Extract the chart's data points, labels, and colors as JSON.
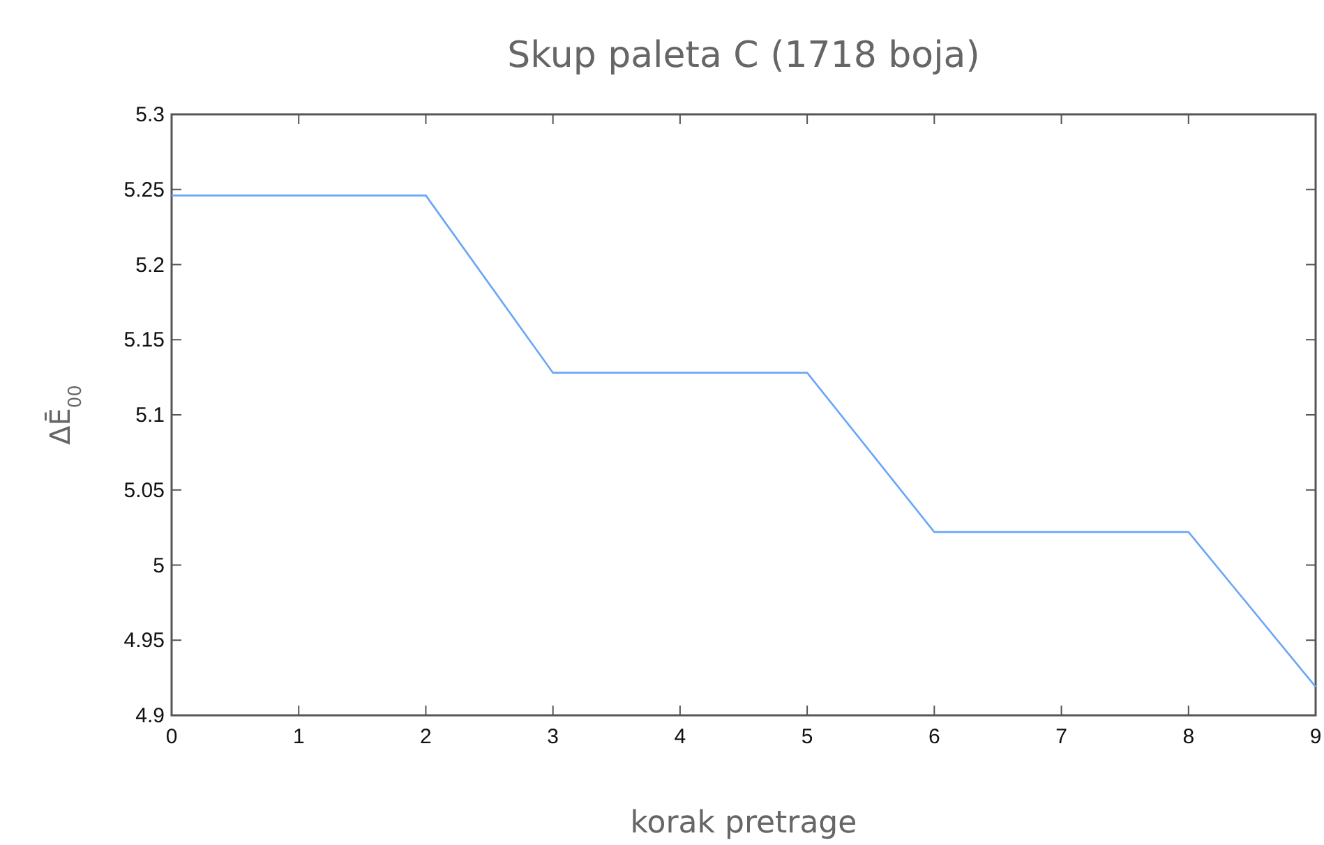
{
  "chart_data": {
    "type": "line",
    "title": "Skup paleta C (1718 boja)",
    "xlabel": "korak pretrage",
    "ylabel": "ΔĒ$_{00}$",
    "x": [
      0,
      1,
      2,
      3,
      4,
      5,
      6,
      7,
      8,
      9
    ],
    "series": [
      {
        "color": "#6aa6f8",
        "values": [
          5.246,
          5.246,
          5.246,
          5.128,
          5.128,
          5.128,
          5.022,
          5.022,
          5.022,
          4.919
        ]
      }
    ],
    "xlim": [
      0,
      9
    ],
    "xticks": [
      0,
      1,
      2,
      3,
      4,
      5,
      6,
      7,
      8,
      9
    ],
    "ylim": [
      4.9,
      5.3
    ],
    "yticks": [
      4.9,
      4.95,
      5,
      5.05,
      5.1,
      5.15,
      5.2,
      5.25,
      5.3
    ],
    "grid": false,
    "legend": false,
    "marker": "none",
    "line_style": "solid"
  }
}
